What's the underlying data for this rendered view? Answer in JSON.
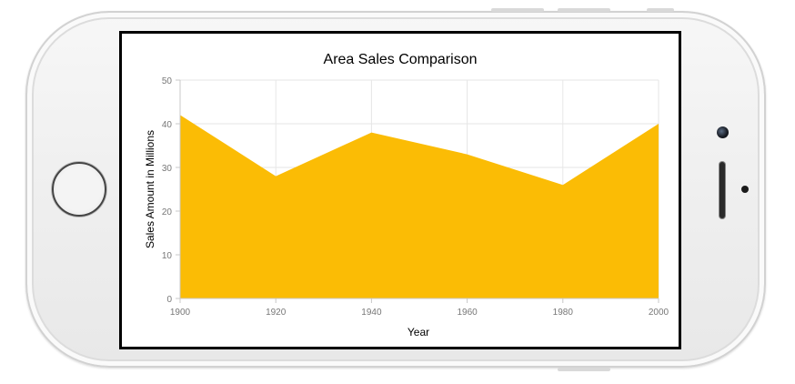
{
  "device": {
    "frame_color": "#efefef",
    "home_button_icon": "home-button-ring",
    "camera_icon": "front-camera",
    "speaker_icon": "earpiece-speaker"
  },
  "chart_data": {
    "type": "area",
    "title": "Area Sales Comparison",
    "xlabel": "Year",
    "ylabel": "Sales Amount in Millions",
    "x": [
      1900,
      1920,
      1940,
      1960,
      1980,
      2000
    ],
    "x_tick_labels": [
      "1900",
      "1920",
      "1940",
      "1960",
      "1980",
      "2000"
    ],
    "y_tick_labels": [
      "0",
      "10",
      "20",
      "30",
      "40",
      "50"
    ],
    "xlim": [
      1900,
      2000
    ],
    "ylim": [
      0,
      50
    ],
    "grid": true,
    "series": [
      {
        "values": [
          42,
          28,
          38,
          33,
          26,
          40
        ],
        "color": "#fbbc05"
      }
    ],
    "colors": {
      "area": "#fbbc05",
      "grid": "#e6e6e6",
      "axis": "#c8c8c8",
      "tick_text": "#777777",
      "title_text": "#000000"
    }
  }
}
